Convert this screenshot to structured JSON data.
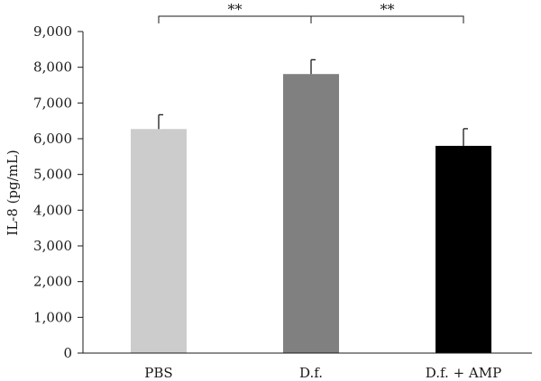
{
  "chart_data": {
    "type": "bar",
    "title": "",
    "xlabel": "",
    "ylabel": "IL-8 (pg/mL)",
    "ylim": [
      0,
      9000
    ],
    "yticks": [
      0,
      1000,
      2000,
      3000,
      4000,
      5000,
      6000,
      7000,
      8000,
      9000
    ],
    "ytick_labels": [
      "0",
      "1,000",
      "2,000",
      "3,000",
      "4,000",
      "5,000",
      "6,000",
      "7,000",
      "8,000",
      "9,000"
    ],
    "categories": [
      "PBS",
      "D.f.",
      "D.f. + AMP"
    ],
    "values": [
      6270,
      7810,
      5800
    ],
    "error_bars": [
      400,
      400,
      480
    ],
    "bar_colors": [
      "#cccccc",
      "#808080",
      "#000000"
    ],
    "grid": false,
    "legend": "none",
    "significance": [
      {
        "from": 0,
        "to": 1,
        "label": "**"
      },
      {
        "from": 1,
        "to": 2,
        "label": "**"
      }
    ]
  }
}
